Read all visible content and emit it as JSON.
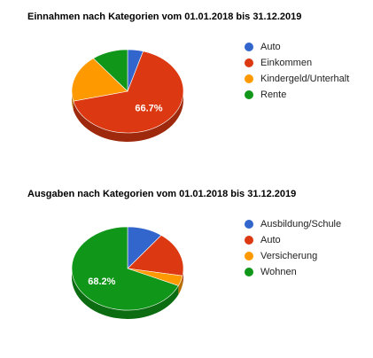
{
  "chart_data": [
    {
      "type": "pie",
      "title": "Einnahmen nach Kategorien vom 01.01.2018 bis 31.12.2019",
      "categories": [
        "Auto",
        "Einkommen",
        "Kindergeld/Unterhalt",
        "Rente"
      ],
      "values": [
        4.5,
        66.7,
        18.3,
        10.5
      ],
      "colors": [
        "#3366cc",
        "#dc3912",
        "#ff9900",
        "#109618"
      ],
      "slice_labels": [
        "",
        "66.7%",
        "",
        ""
      ],
      "start_angle_deg": 0,
      "legend_position": "right",
      "style": "3d"
    },
    {
      "type": "pie",
      "title": "Ausgaben nach Kategorien vom 01.01.2018 bis 31.12.2019",
      "categories": [
        "Ausbildung/Schule",
        "Auto",
        "Versicherung",
        "Wohnen"
      ],
      "values": [
        10.3,
        17.5,
        4.0,
        68.2
      ],
      "colors": [
        "#3366cc",
        "#dc3912",
        "#ff9900",
        "#109618"
      ],
      "slice_labels": [
        "",
        "",
        "",
        "68.2%"
      ],
      "start_angle_deg": 0,
      "legend_position": "right",
      "style": "3d"
    }
  ]
}
